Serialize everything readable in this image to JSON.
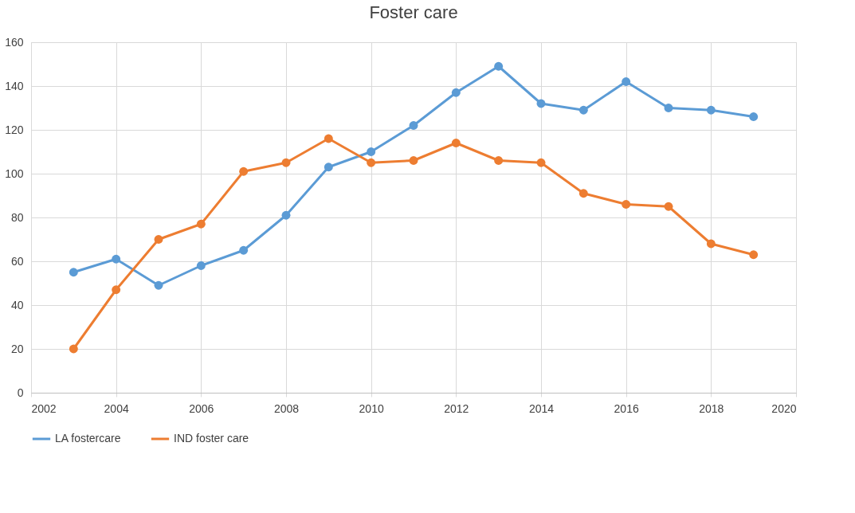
{
  "chart_data": {
    "type": "line",
    "title": "Foster care",
    "x": [
      2003,
      2004,
      2005,
      2006,
      2007,
      2008,
      2009,
      2010,
      2011,
      2012,
      2013,
      2014,
      2015,
      2016,
      2017,
      2018,
      2019
    ],
    "series": [
      {
        "name": "LA fostercare",
        "color": "#5b9bd5",
        "values": [
          55,
          61,
          49,
          58,
          65,
          81,
          103,
          110,
          122,
          137,
          149,
          132,
          129,
          142,
          130,
          129,
          126
        ]
      },
      {
        "name": "IND foster care",
        "color": "#ed7d31",
        "values": [
          20,
          47,
          70,
          77,
          101,
          105,
          116,
          105,
          106,
          114,
          106,
          105,
          91,
          86,
          85,
          68,
          63
        ]
      }
    ],
    "xlim": [
      2002,
      2020
    ],
    "xticks": [
      2002,
      2004,
      2006,
      2008,
      2010,
      2012,
      2014,
      2016,
      2018,
      2020
    ],
    "ylim": [
      0,
      160
    ],
    "yticks": [
      0,
      20,
      40,
      60,
      80,
      100,
      120,
      140,
      160
    ],
    "grid": true,
    "legend": "bottom",
    "marker": "circle",
    "line_style": "solid"
  }
}
